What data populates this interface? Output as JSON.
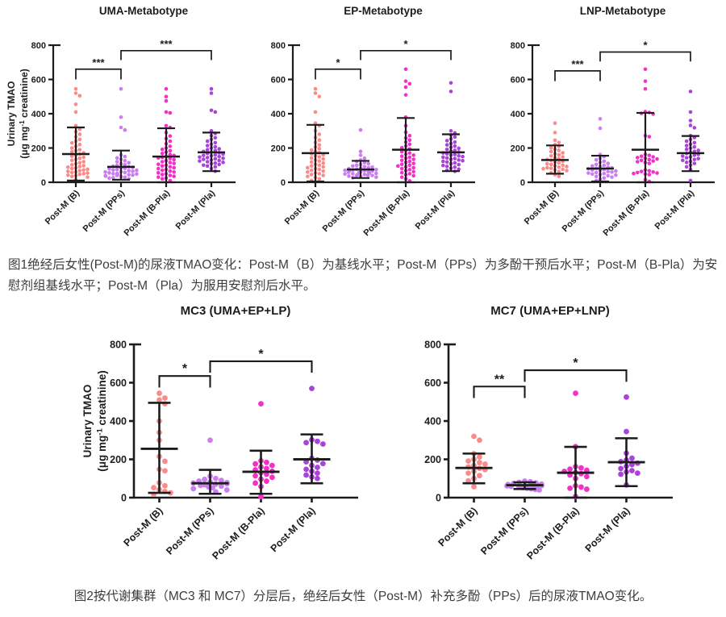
{
  "colors": {
    "background": "#ffffff",
    "axis": "#1c1c1c",
    "caption_text": "#3d3d3d",
    "group_b": "#fb8b8b",
    "group_pps": "#ca7ef0",
    "group_bpla": "#f231c8",
    "group_pla": "#a844d8"
  },
  "captions": {
    "figure1": "图1绝经后女性(Post-M)的尿液TMAO变化：Post-M（B）为基线水平；Post-M（PPs）为多酚干预后水平；Post-M（B-Pla）为安慰剂组基线水平；Post-M（Pla）为服用安慰剂后水平。",
    "figure2": "图2按代谢集群（MC3 和 MC7）分层后，绝经后女性（Post-M）补充多酚（PPs）后的尿液TMAO变化。"
  },
  "chart_data": [
    {
      "figure": 1,
      "type": "scatter",
      "title": "UMA-Metabotype",
      "categories": [
        "Post-M (B)",
        "Post-M (PPs)",
        "Post-M (B-Pla)",
        "Post-M (Pla)"
      ],
      "ylabel": "Urinary TMAO (μg mg⁻¹ creatinine)",
      "ylabel_line1": "Urinary TMAO",
      "ylabel_line2": "(μg mg⁻¹ creatinine)",
      "ylabel_shown": true,
      "ylim": [
        0,
        800
      ],
      "yticks": [
        0,
        200,
        400,
        600,
        800
      ],
      "grid": false,
      "legend": "none",
      "series": [
        {
          "name": "Post-M (B)",
          "color": "#fb8b8b",
          "mean": 165,
          "sd_low": 10,
          "sd_high": 320,
          "values": [
            545,
            520,
            505,
            455,
            410,
            330,
            310,
            295,
            280,
            265,
            250,
            240,
            230,
            220,
            210,
            200,
            190,
            185,
            178,
            172,
            165,
            158,
            152,
            146,
            140,
            134,
            128,
            120,
            114,
            108,
            102,
            97,
            92,
            88,
            84,
            80,
            76,
            72,
            68,
            64,
            60,
            57,
            54,
            50,
            46,
            42,
            38,
            34,
            30,
            15
          ]
        },
        {
          "name": "Post-M (PPs)",
          "color": "#ca7ef0",
          "mean": 90,
          "sd_low": 15,
          "sd_high": 185,
          "values": [
            545,
            380,
            320,
            305,
            160,
            150,
            142,
            134,
            126,
            120,
            114,
            108,
            103,
            98,
            94,
            90,
            87,
            84,
            81,
            78,
            75,
            72,
            70,
            67,
            64,
            62,
            60,
            57,
            55,
            52,
            50,
            48,
            46,
            44,
            42,
            40,
            38,
            36,
            33,
            30,
            27,
            24,
            20
          ]
        },
        {
          "name": "Post-M (B-Pla)",
          "color": "#f231c8",
          "mean": 150,
          "sd_low": 0,
          "sd_high": 315,
          "values": [
            545,
            500,
            475,
            410,
            405,
            330,
            320,
            290,
            270,
            255,
            240,
            225,
            210,
            200,
            192,
            184,
            176,
            168,
            162,
            156,
            150,
            146,
            142,
            138,
            132,
            126,
            120,
            115,
            110,
            105,
            100,
            95,
            90,
            85,
            80,
            75,
            70,
            65,
            60,
            55,
            50,
            45,
            40,
            35,
            30,
            25,
            20,
            10
          ]
        },
        {
          "name": "Post-M (Pla)",
          "color": "#a844d8",
          "mean": 175,
          "sd_low": 65,
          "sd_high": 290,
          "values": [
            545,
            520,
            420,
            410,
            300,
            285,
            272,
            260,
            250,
            240,
            231,
            222,
            214,
            207,
            200,
            195,
            190,
            185,
            180,
            176,
            172,
            168,
            164,
            160,
            157,
            154,
            150,
            147,
            144,
            140,
            137,
            134,
            130,
            127,
            124,
            120,
            116,
            112,
            108,
            104,
            100,
            95,
            90,
            80,
            65
          ]
        }
      ],
      "significance": [
        {
          "from": 0,
          "to": 1,
          "label": "***",
          "y": 660,
          "drop": 60
        },
        {
          "from": 1,
          "to": 3,
          "label": "***",
          "y": 768,
          "drop": 55
        }
      ]
    },
    {
      "figure": 1,
      "type": "scatter",
      "title": "EP-Metabotype",
      "categories": [
        "Post-M (B)",
        "Post-M (PPs)",
        "Post-M (B-Pla)",
        "Post-M (Pla)"
      ],
      "ylabel": "Urinary TMAO (μg mg⁻¹ creatinine)",
      "ylabel_line1": "Urinary TMAO",
      "ylabel_line2": "(μg mg⁻¹ creatinine)",
      "ylabel_shown": false,
      "ylim": [
        0,
        800
      ],
      "yticks": [
        0,
        200,
        400,
        600,
        800
      ],
      "grid": false,
      "legend": "none",
      "series": [
        {
          "name": "Post-M (B)",
          "color": "#fb8b8b",
          "mean": 170,
          "sd_low": 5,
          "sd_high": 335,
          "values": [
            545,
            520,
            500,
            410,
            345,
            330,
            300,
            280,
            262,
            246,
            232,
            218,
            206,
            196,
            188,
            180,
            173,
            166,
            160,
            154,
            148,
            142,
            136,
            130,
            124,
            118,
            112,
            106,
            100,
            95,
            90,
            85,
            80,
            75,
            70,
            65,
            60,
            55,
            50,
            45,
            40,
            34,
            28,
            20,
            10
          ]
        },
        {
          "name": "Post-M (PPs)",
          "color": "#ca7ef0",
          "mean": 75,
          "sd_low": 25,
          "sd_high": 125,
          "values": [
            305,
            180,
            158,
            140,
            130,
            122,
            115,
            109,
            104,
            99,
            95,
            91,
            88,
            85,
            82,
            79,
            76,
            74,
            72,
            70,
            68,
            66,
            64,
            62,
            60,
            58,
            56,
            54,
            52,
            50,
            48,
            46,
            44,
            42,
            40,
            38,
            36,
            33,
            30,
            27
          ]
        },
        {
          "name": "Post-M (B-Pla)",
          "color": "#f231c8",
          "mean": 190,
          "sd_low": 0,
          "sd_high": 375,
          "values": [
            660,
            590,
            575,
            555,
            510,
            380,
            330,
            292,
            272,
            258,
            246,
            234,
            222,
            212,
            202,
            194,
            186,
            178,
            171,
            164,
            158,
            152,
            146,
            140,
            134,
            128,
            122,
            116,
            110,
            105,
            100,
            95,
            90,
            85,
            80,
            74,
            68,
            62,
            56,
            50,
            44,
            38,
            30,
            20,
            8
          ]
        },
        {
          "name": "Post-M (Pla)",
          "color": "#a844d8",
          "mean": 175,
          "sd_low": 65,
          "sd_high": 280,
          "values": [
            580,
            530,
            300,
            288,
            276,
            264,
            253,
            243,
            234,
            226,
            218,
            211,
            204,
            198,
            192,
            186,
            181,
            176,
            171,
            166,
            162,
            158,
            154,
            150,
            146,
            142,
            138,
            134,
            130,
            126,
            122,
            118,
            113,
            108,
            103,
            98,
            93,
            88,
            82,
            76,
            70,
            64
          ]
        }
      ],
      "significance": [
        {
          "from": 0,
          "to": 1,
          "label": "*",
          "y": 660,
          "drop": 60
        },
        {
          "from": 1,
          "to": 3,
          "label": "*",
          "y": 768,
          "drop": 55
        }
      ]
    },
    {
      "figure": 1,
      "type": "scatter",
      "title": "LNP-Metabotype",
      "categories": [
        "Post-M (B)",
        "Post-M (PPs)",
        "Post-M (B-Pla)",
        "Post-M (Pla)"
      ],
      "ylabel": "Urinary TMAO (μg mg⁻¹ creatinine)",
      "ylabel_line1": "Urinary TMAO",
      "ylabel_line2": "(μg mg⁻¹ creatinine)",
      "ylabel_shown": false,
      "ylim": [
        0,
        800
      ],
      "yticks": [
        0,
        200,
        400,
        600,
        800
      ],
      "grid": false,
      "legend": "none",
      "series": [
        {
          "name": "Post-M (B)",
          "color": "#fb8b8b",
          "mean": 130,
          "sd_low": 50,
          "sd_high": 215,
          "values": [
            345,
            290,
            245,
            232,
            220,
            210,
            201,
            193,
            186,
            179,
            172,
            166,
            160,
            154,
            148,
            143,
            138,
            133,
            128,
            123,
            118,
            113,
            108,
            104,
            100,
            96,
            92,
            88,
            85,
            82,
            79,
            76,
            72,
            68,
            62,
            55,
            45,
            35
          ]
        },
        {
          "name": "Post-M (PPs)",
          "color": "#ca7ef0",
          "mean": 80,
          "sd_low": 5,
          "sd_high": 155,
          "values": [
            370,
            315,
            162,
            150,
            140,
            131,
            123,
            116,
            110,
            104,
            99,
            95,
            91,
            87,
            84,
            81,
            78,
            75,
            72,
            69,
            66,
            63,
            60,
            57,
            54,
            51,
            48,
            45,
            42,
            38,
            34,
            30,
            25,
            18,
            10
          ]
        },
        {
          "name": "Post-M (B-Pla)",
          "color": "#f231c8",
          "mean": 190,
          "sd_low": 0,
          "sd_high": 405,
          "values": [
            660,
            590,
            545,
            412,
            407,
            402,
            398,
            272,
            266,
            163,
            157,
            152,
            148,
            144,
            140,
            136,
            132,
            128,
            124,
            120,
            115,
            110,
            72,
            67,
            63,
            60,
            57,
            54,
            51,
            48,
            45,
            15,
            5
          ]
        },
        {
          "name": "Post-M (Pla)",
          "color": "#a844d8",
          "mean": 170,
          "sd_low": 65,
          "sd_high": 270,
          "values": [
            530,
            410,
            360,
            332,
            318,
            272,
            261,
            250,
            240,
            231,
            222,
            214,
            206,
            199,
            192,
            186,
            180,
            174,
            168,
            163,
            158,
            153,
            148,
            143,
            138,
            133,
            128,
            122,
            116,
            110,
            100,
            90,
            75,
            10
          ]
        }
      ],
      "significance": [
        {
          "from": 0,
          "to": 1,
          "label": "***",
          "y": 650,
          "drop": 60
        },
        {
          "from": 1,
          "to": 3,
          "label": "*",
          "y": 760,
          "drop": 55
        }
      ]
    },
    {
      "figure": 2,
      "type": "scatter",
      "title": "MC3 (UMA+EP+LP)",
      "categories": [
        "Post-M (B)",
        "Post-M (PPs)",
        "Post-M (B-Pla)",
        "Post-M (Pla)"
      ],
      "ylabel": "Urinary TMAO (μg mg⁻¹ creatinine)",
      "ylabel_line1": "Urinary TMAO",
      "ylabel_line2": "(μg mg⁻¹ creatinine)",
      "ylabel_shown": true,
      "ylim": [
        0,
        800
      ],
      "yticks": [
        0,
        200,
        400,
        600,
        800
      ],
      "grid": false,
      "legend": "none",
      "series": [
        {
          "name": "Post-M (B)",
          "color": "#fb8b8b",
          "mean": 255,
          "sd_low": 25,
          "sd_high": 495,
          "values": [
            545,
            520,
            510,
            490,
            400,
            340,
            300,
            215,
            190,
            148,
            140,
            78,
            62,
            52,
            42,
            32,
            25,
            18
          ]
        },
        {
          "name": "Post-M (PPs)",
          "color": "#ca7ef0",
          "mean": 75,
          "sd_low": 20,
          "sd_high": 145,
          "values": [
            300,
            112,
            100,
            95,
            90,
            86,
            82,
            79,
            76,
            73,
            70,
            67,
            64,
            60,
            56,
            52,
            47,
            40,
            30
          ]
        },
        {
          "name": "Post-M (B-Pla)",
          "color": "#f231c8",
          "mean": 135,
          "sd_low": 20,
          "sd_high": 245,
          "values": [
            490,
            192,
            184,
            176,
            168,
            160,
            152,
            145,
            138,
            130,
            122,
            114,
            106,
            96,
            86,
            76,
            58,
            5
          ]
        },
        {
          "name": "Post-M (Pla)",
          "color": "#a844d8",
          "mean": 200,
          "sd_low": 75,
          "sd_high": 330,
          "values": [
            570,
            302,
            294,
            287,
            280,
            205,
            196,
            187,
            178,
            168,
            158,
            148,
            138,
            128,
            118,
            108,
            100
          ]
        }
      ],
      "significance": [
        {
          "from": 0,
          "to": 1,
          "label": "*",
          "y": 635,
          "drop": 60
        },
        {
          "from": 1,
          "to": 3,
          "label": "*",
          "y": 712,
          "drop": 60
        }
      ]
    },
    {
      "figure": 2,
      "type": "scatter",
      "title": "MC7 (UMA+EP+LNP)",
      "categories": [
        "Post-M (B)",
        "Post-M (PPs)",
        "Post-M (B-Pla)",
        "Post-M (Pla)"
      ],
      "ylabel": "Urinary TMAO (μg mg⁻¹ creatinine)",
      "ylabel_line1": "Urinary TMAO",
      "ylabel_line2": "(μg mg⁻¹ creatinine)",
      "ylabel_shown": false,
      "ylim": [
        0,
        800
      ],
      "yticks": [
        0,
        200,
        400,
        600,
        800
      ],
      "grid": false,
      "legend": "none",
      "series": [
        {
          "name": "Post-M (B)",
          "color": "#fb8b8b",
          "mean": 155,
          "sd_low": 75,
          "sd_high": 230,
          "values": [
            320,
            300,
            230,
            212,
            200,
            191,
            183,
            175,
            167,
            160,
            153,
            146,
            138,
            128,
            115,
            100,
            88,
            57
          ]
        },
        {
          "name": "Post-M (PPs)",
          "color": "#ca7ef0",
          "mean": 65,
          "sd_low": 45,
          "sd_high": 80,
          "values": [
            86,
            83,
            80,
            77,
            74,
            71,
            69,
            67,
            65,
            63,
            61,
            59,
            57,
            55,
            52,
            49,
            46,
            43,
            40
          ]
        },
        {
          "name": "Post-M (B-Pla)",
          "color": "#f231c8",
          "mean": 130,
          "sd_low": 0,
          "sd_high": 265,
          "values": [
            545,
            266,
            162,
            155,
            149,
            143,
            137,
            131,
            125,
            118,
            110,
            100,
            62,
            55,
            49,
            44,
            6
          ]
        },
        {
          "name": "Post-M (Pla)",
          "color": "#a844d8",
          "mean": 185,
          "sd_low": 60,
          "sd_high": 310,
          "values": [
            525,
            345,
            232,
            206,
            196,
            188,
            180,
            172,
            164,
            152,
            141,
            134,
            128,
            122,
            66
          ]
        }
      ],
      "significance": [
        {
          "from": 0,
          "to": 1,
          "label": "**",
          "y": 580,
          "drop": 60
        },
        {
          "from": 1,
          "to": 3,
          "label": "*",
          "y": 665,
          "drop": 60
        }
      ]
    }
  ]
}
